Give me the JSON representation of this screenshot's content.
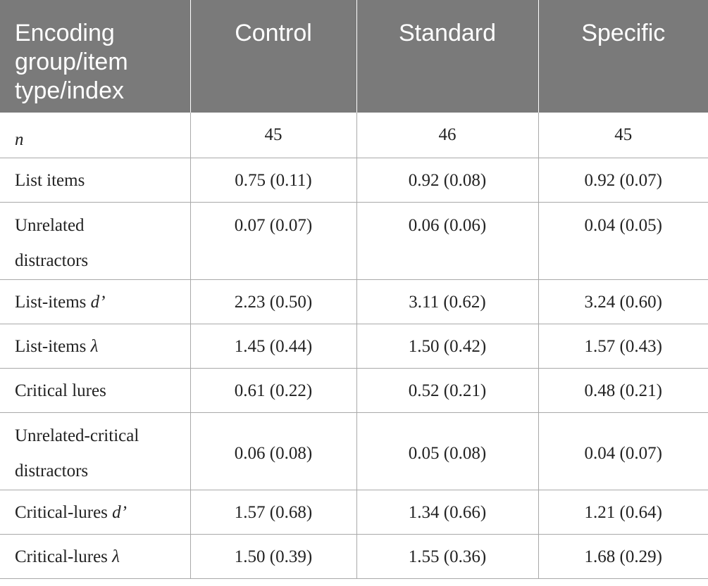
{
  "table": {
    "headers": [
      {
        "line1": "Encoding",
        "line2": "group/item",
        "line3": "type/index"
      },
      "Control",
      "Standard",
      "Specific"
    ],
    "rows": [
      {
        "label": "",
        "label_italic": "n",
        "values": [
          "45",
          "46",
          "45"
        ]
      },
      {
        "label": "List items",
        "label_italic": "",
        "values": [
          "0.75 (0.11)",
          "0.92 (0.08)",
          "0.92 (0.07)"
        ]
      },
      {
        "label": "Unrelated distractors",
        "label_line1": "Unrelated",
        "label_line2": "distractors",
        "values": [
          "0.07 (0.07)",
          "0.06 (0.06)",
          "0.04 (0.05)"
        ]
      },
      {
        "label": "List-items ",
        "label_italic": "d’",
        "values": [
          "2.23 (0.50)",
          "3.11 (0.62)",
          "3.24 (0.60)"
        ]
      },
      {
        "label": "List-items ",
        "label_italic": "λ",
        "values": [
          "1.45 (0.44)",
          "1.50 (0.42)",
          "1.57 (0.43)"
        ]
      },
      {
        "label": "Critical lures",
        "label_italic": "",
        "values": [
          "0.61 (0.22)",
          "0.52 (0.21)",
          "0.48 (0.21)"
        ]
      },
      {
        "label": "Unrelated-critical distractors",
        "label_line1": "Unrelated-critical",
        "label_line2": "distractors",
        "values": [
          "0.06 (0.08)",
          "0.05 (0.08)",
          "0.04 (0.07)"
        ]
      },
      {
        "label": "Critical-lures ",
        "label_italic": "d’",
        "values": [
          "1.57 (0.68)",
          "1.34 (0.66)",
          "1.21 (0.64)"
        ]
      },
      {
        "label": "Critical-lures ",
        "label_italic": "λ",
        "values": [
          "1.50 (0.39)",
          "1.55 (0.36)",
          "1.68 (0.29)"
        ]
      }
    ]
  }
}
